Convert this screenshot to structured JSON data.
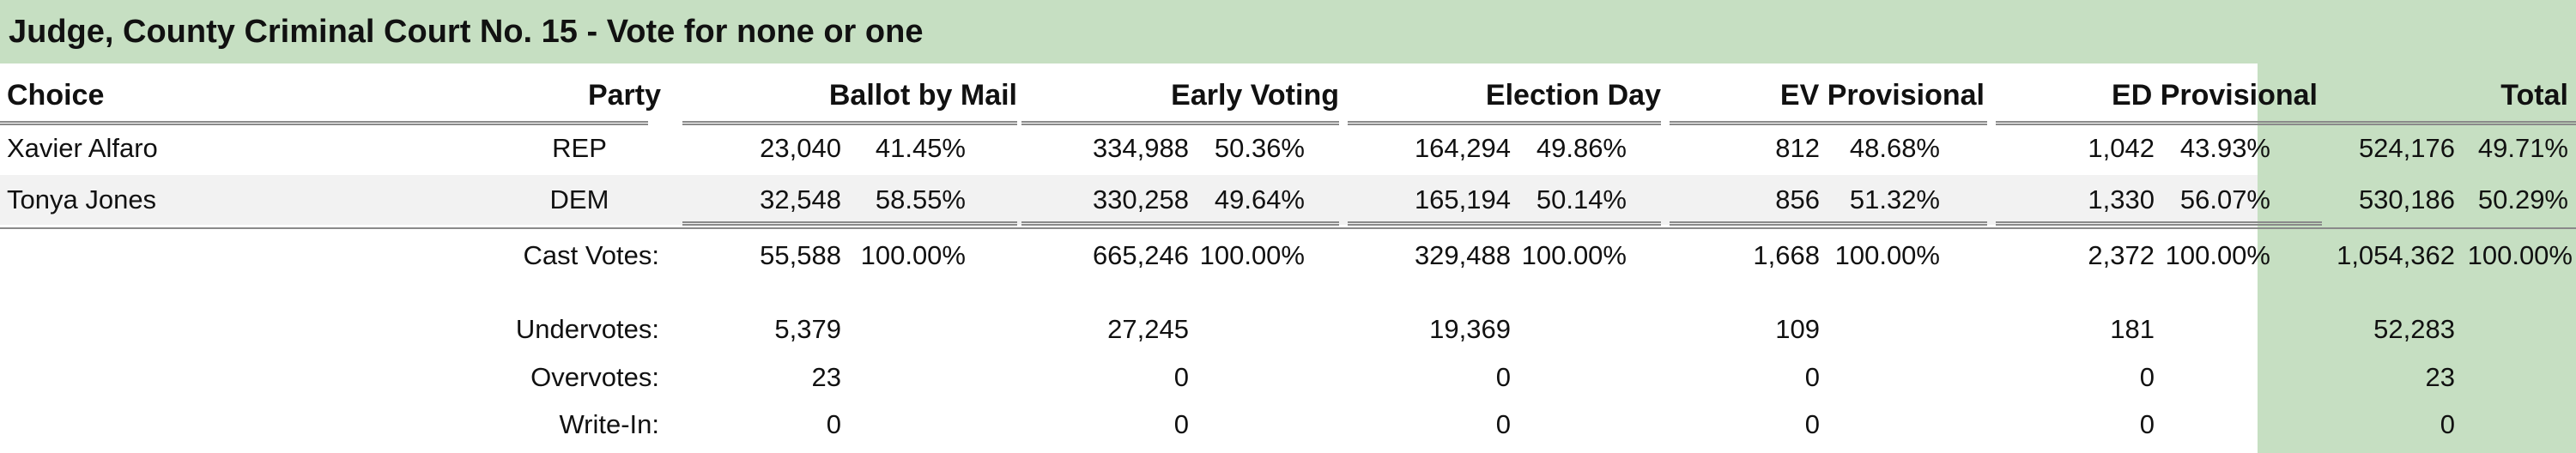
{
  "title": "Judge, County Criminal Court No. 15 - Vote for none or one",
  "headers": {
    "choice": "Choice",
    "party": "Party",
    "ballot_by_mail": "Ballot by Mail",
    "early_voting": "Early Voting",
    "election_day": "Election Day",
    "ev_provisional": "EV Provisional",
    "ed_provisional": "ED Provisional",
    "total": "Total"
  },
  "candidates": [
    {
      "name": "Xavier Alfaro",
      "party": "REP",
      "bbm": "23,040",
      "bbm_pct": "41.45%",
      "ev": "334,988",
      "ev_pct": "50.36%",
      "ed": "164,294",
      "ed_pct": "49.86%",
      "evp": "812",
      "evp_pct": "48.68%",
      "edp": "1,042",
      "edp_pct": "43.93%",
      "total": "524,176",
      "total_pct": "49.71%"
    },
    {
      "name": "Tonya Jones",
      "party": "DEM",
      "bbm": "32,548",
      "bbm_pct": "58.55%",
      "ev": "330,258",
      "ev_pct": "49.64%",
      "ed": "165,194",
      "ed_pct": "50.14%",
      "evp": "856",
      "evp_pct": "51.32%",
      "edp": "1,330",
      "edp_pct": "56.07%",
      "total": "530,186",
      "total_pct": "50.29%"
    }
  ],
  "cast_votes": {
    "label": "Cast Votes:",
    "bbm": "55,588",
    "bbm_pct": "100.00%",
    "ev": "665,246",
    "ev_pct": "100.00%",
    "ed": "329,488",
    "ed_pct": "100.00%",
    "evp": "1,668",
    "evp_pct": "100.00%",
    "edp": "2,372",
    "edp_pct": "100.00%",
    "total": "1,054,362",
    "total_pct": "100.00%"
  },
  "undervotes": {
    "label": "Undervotes:",
    "bbm": "5,379",
    "ev": "27,245",
    "ed": "19,369",
    "evp": "109",
    "edp": "181",
    "total": "52,283"
  },
  "overvotes": {
    "label": "Overvotes:",
    "bbm": "23",
    "ev": "0",
    "ed": "0",
    "evp": "0",
    "edp": "0",
    "total": "23"
  },
  "write_in": {
    "label": "Write-In:",
    "bbm": "0",
    "ev": "0",
    "ed": "0",
    "evp": "0",
    "edp": "0",
    "total": "0"
  }
}
